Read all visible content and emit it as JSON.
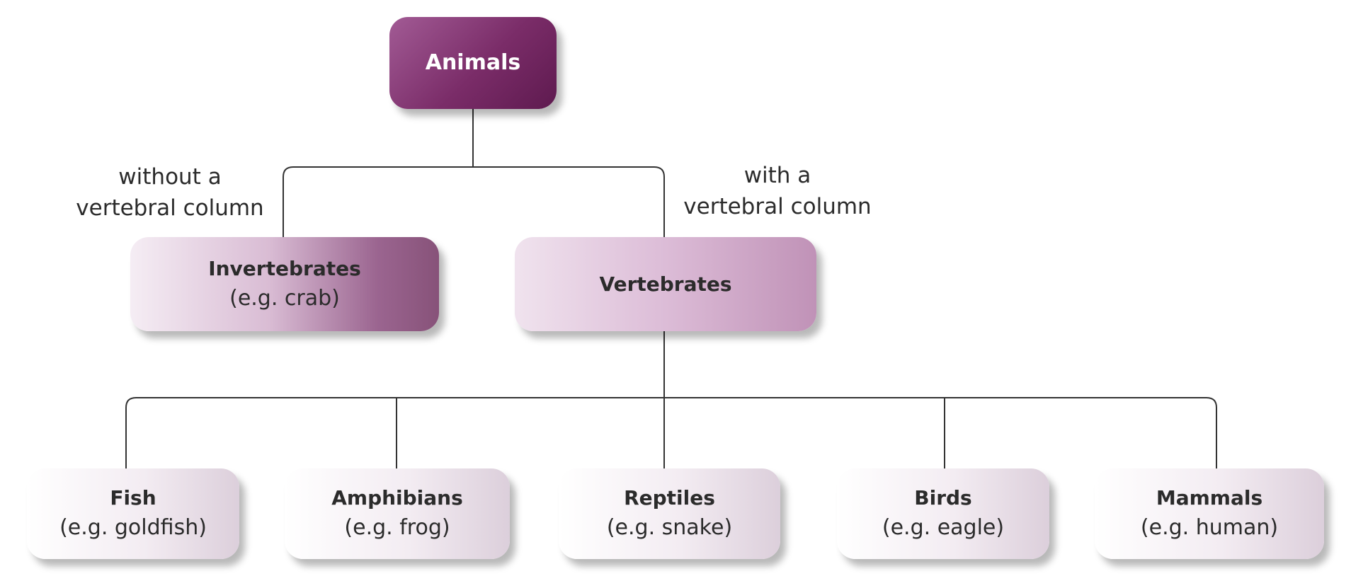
{
  "root": {
    "title": "Animals"
  },
  "branches": {
    "without": {
      "label_line1": "without a",
      "label_line2": "vertebral column"
    },
    "with": {
      "label_line1": "with a",
      "label_line2": "vertebral column"
    }
  },
  "level1": {
    "invertebrates": {
      "title": "Invertebrates",
      "example": "(e.g. crab)"
    },
    "vertebrates": {
      "title": "Vertebrates"
    }
  },
  "level2": [
    {
      "title": "Fish",
      "example": "(e.g. goldfish)"
    },
    {
      "title": "Amphibians",
      "example": "(e.g. frog)"
    },
    {
      "title": "Reptiles",
      "example": "(e.g. snake)"
    },
    {
      "title": "Birds",
      "example": "(e.g. eagle)"
    },
    {
      "title": "Mammals",
      "example": "(e.g. human)"
    }
  ],
  "colors": {
    "root_fill": "#7a2c68",
    "invertebrates_fill": "#875279",
    "vertebrates_fill": "#c092b7",
    "leaf_fill": "#f3ecf2",
    "connector": "#333333"
  }
}
